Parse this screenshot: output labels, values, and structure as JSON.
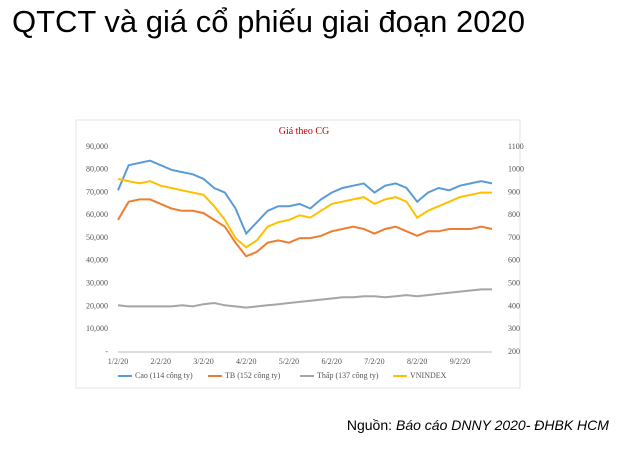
{
  "slide_title": "QTCT và giá cổ phiếu giai đoạn 2020",
  "source": {
    "label": "Nguồn:",
    "text": "Báo cáo DNNY 2020- ĐHBK HCM"
  },
  "chart_data": {
    "type": "line",
    "title": "Giá theo CG",
    "categories": [
      "1/2/20",
      null,
      null,
      null,
      "2/2/20",
      null,
      null,
      null,
      "3/2/20",
      null,
      null,
      null,
      "4/2/20",
      null,
      null,
      null,
      "5/2/20",
      null,
      null,
      null,
      "6/2/20",
      null,
      null,
      null,
      "7/2/20",
      null,
      null,
      null,
      "8/2/20",
      null,
      null,
      null,
      "9/2/20",
      null,
      null,
      null
    ],
    "ylim": [
      0,
      90000
    ],
    "yticks": [
      {
        "value": 0,
        "label": "-"
      },
      {
        "value": 10000,
        "label": "10,000"
      },
      {
        "value": 20000,
        "label": "20,000"
      },
      {
        "value": 30000,
        "label": "30,000"
      },
      {
        "value": 40000,
        "label": "40,000"
      },
      {
        "value": 50000,
        "label": "50,000"
      },
      {
        "value": 60000,
        "label": "60,000"
      },
      {
        "value": 70000,
        "label": "70,000"
      },
      {
        "value": 80000,
        "label": "80,000"
      },
      {
        "value": 90000,
        "label": "90,000"
      }
    ],
    "y2lim": [
      200,
      1100
    ],
    "y2ticks": [
      200,
      300,
      400,
      500,
      600,
      700,
      800,
      900,
      1000,
      1100
    ],
    "series": [
      {
        "name": "Cao (114 công ty)",
        "color": "#5b9bd5",
        "values": [
          71000,
          82000,
          83000,
          84000,
          82000,
          80000,
          79000,
          78000,
          76000,
          72000,
          70000,
          63000,
          52000,
          57000,
          62000,
          64000,
          64000,
          65000,
          63000,
          67000,
          70000,
          72000,
          73000,
          74000,
          70000,
          73000,
          74000,
          72000,
          66000,
          70000,
          72000,
          71000,
          73000,
          74000,
          75000,
          74000
        ]
      },
      {
        "name": "TB (152 công ty)",
        "color": "#ed7d31",
        "values": [
          58000,
          66000,
          67000,
          67000,
          65000,
          63000,
          62000,
          62000,
          61000,
          58000,
          55000,
          48000,
          42000,
          44000,
          48000,
          49000,
          48000,
          50000,
          50000,
          51000,
          53000,
          54000,
          55000,
          54000,
          52000,
          54000,
          55000,
          53000,
          51000,
          53000,
          53000,
          54000,
          54000,
          54000,
          55000,
          54000
        ]
      },
      {
        "name": "Thấp (137 công ty)",
        "color": "#a5a5a5",
        "values": [
          20500,
          20000,
          20000,
          20000,
          20000,
          20000,
          20500,
          20000,
          21000,
          21500,
          20500,
          20000,
          19500,
          20000,
          20500,
          21000,
          21500,
          22000,
          22500,
          23000,
          23500,
          24000,
          24000,
          24500,
          24500,
          24000,
          24500,
          25000,
          24500,
          25000,
          25500,
          26000,
          26500,
          27000,
          27500,
          27500
        ]
      },
      {
        "name": "VNINDEX",
        "color": "#ffc000",
        "axis": "y2",
        "values": [
          960,
          950,
          940,
          950,
          930,
          920,
          910,
          900,
          890,
          840,
          780,
          700,
          660,
          690,
          750,
          770,
          780,
          800,
          790,
          820,
          850,
          860,
          870,
          880,
          850,
          870,
          880,
          860,
          790,
          820,
          840,
          860,
          880,
          890,
          900,
          900
        ]
      }
    ]
  }
}
